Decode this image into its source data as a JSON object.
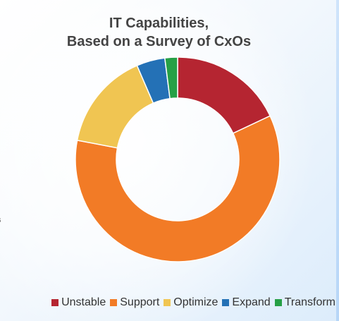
{
  "chart_data": {
    "type": "pie",
    "variant": "donut",
    "title_lines": [
      "IT Capabilities,",
      "Based on a Survey of CxOs"
    ],
    "categories": [
      "Unstable",
      "Support",
      "Optimize",
      "Expand",
      "Transform"
    ],
    "values": [
      18,
      60,
      15.5,
      4.5,
      2
    ],
    "colors": [
      "#b52531",
      "#f27b26",
      "#f0c552",
      "#2471b6",
      "#26a046"
    ],
    "legend_position": "bottom-right",
    "start_angle_deg": 0,
    "direction": "clockwise"
  },
  "edge_fragment": "s"
}
